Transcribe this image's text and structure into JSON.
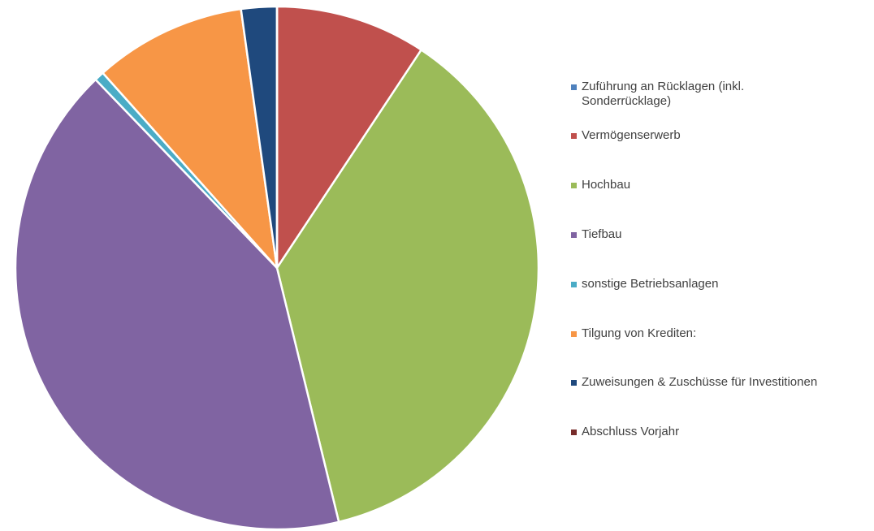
{
  "chart_data": {
    "type": "pie",
    "categories": [
      "Zuführung an Rücklagen (inkl. Sonderrücklage)",
      "Vermögenserwerb",
      "Hochbau",
      "Tiefbau",
      "sonstige Betriebsanlagen",
      "Tilgung von Krediten:",
      "Zuweisungen & Zuschüsse für Investitionen",
      "Abschluss Vorjahr"
    ],
    "values": [
      0,
      9.3,
      36.9,
      41.6,
      0.6,
      9.4,
      2.2,
      0
    ],
    "colors": [
      "#4f81bd",
      "#c0504d",
      "#9bbb59",
      "#8064a2",
      "#4bacc6",
      "#f79646",
      "#1f497d",
      "#772c2a"
    ],
    "legend": "right"
  }
}
